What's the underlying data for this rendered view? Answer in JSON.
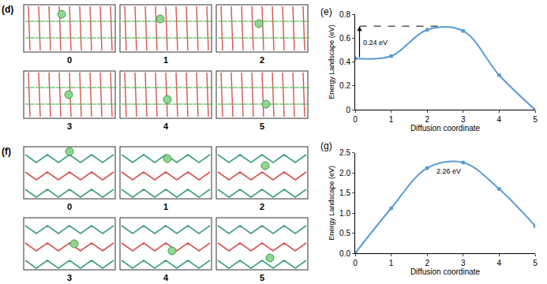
{
  "chart_data": [
    {
      "type": "line",
      "title": "(e)",
      "x": [
        0,
        1,
        2,
        3,
        4,
        5
      ],
      "values": [
        0.43,
        0.45,
        0.67,
        0.66,
        0.29,
        0
      ],
      "color": "#5b9bd5",
      "marker": "circle",
      "line_style": "solid",
      "xlabel": "Diffusion coordinate",
      "ylabel": "Energy Landscape (eV)",
      "xlim": [
        0,
        5
      ],
      "xticks": [
        0,
        1,
        2,
        3,
        4,
        5
      ],
      "ylim": [
        0,
        0.8
      ],
      "yticks": [
        0,
        0.2,
        0.4,
        0.6,
        0.8
      ],
      "grid": false,
      "annotations": [
        {
          "text": "0.24 eV",
          "x": 0.55,
          "y": 0.56,
          "arrow_x": 0.12,
          "arrow_y": [
            0.43,
            0.7
          ]
        }
      ],
      "dashed_line": {
        "x": [
          0.12,
          2.45
        ],
        "y": 0.7
      }
    },
    {
      "type": "line",
      "title": "(g)",
      "x": [
        0,
        1,
        2,
        3,
        4,
        5
      ],
      "values": [
        0,
        1.12,
        2.12,
        2.26,
        1.6,
        0.68
      ],
      "color": "#5b9bd5",
      "marker": "circle",
      "line_style": "solid",
      "xlabel": "Diffusion coordinate",
      "ylabel": "Energy Landscape (eV)",
      "xlim": [
        0,
        5
      ],
      "xticks": [
        0,
        1,
        2,
        3,
        4,
        5
      ],
      "ylim": [
        0,
        2.5
      ],
      "yticks": [
        {
          "value": 0,
          "label": "0.0"
        },
        0.5,
        {
          "value": 1,
          "label": "1.0"
        },
        1.5,
        {
          "value": 2,
          "label": "2.0"
        },
        2.5
      ],
      "grid": false,
      "annotations": [
        {
          "text": "2.26 eV",
          "x": 2.6,
          "y": 2.05
        }
      ]
    }
  ],
  "panels": [
    {
      "label": "(d)",
      "frames": [
        "0",
        "1",
        "2",
        "3",
        "4",
        "5"
      ]
    },
    {
      "label": "(f)",
      "frames": [
        "0",
        "1",
        "2",
        "3",
        "4",
        "5"
      ]
    }
  ]
}
